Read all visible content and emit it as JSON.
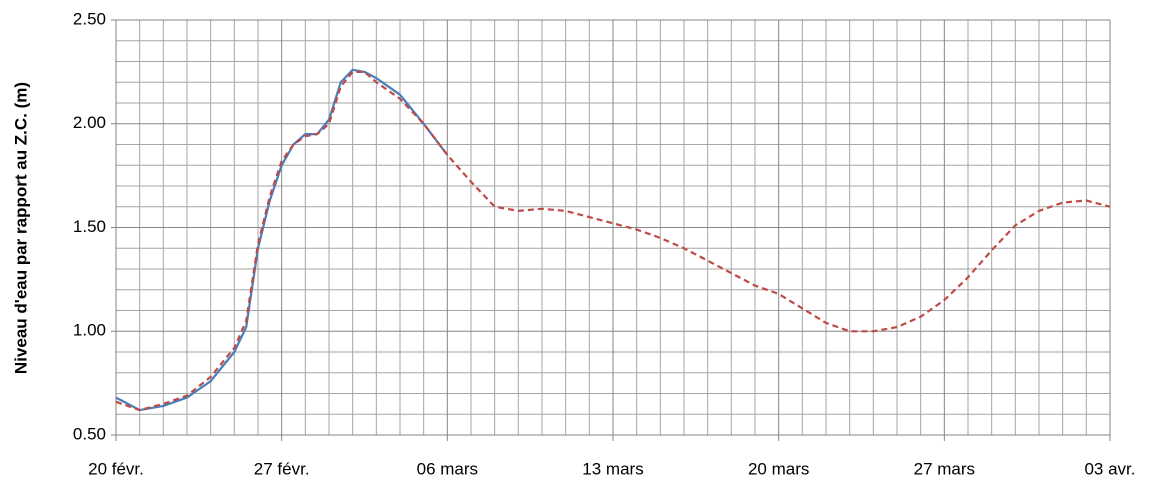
{
  "chart_data": {
    "type": "line",
    "ylabel": "Niveau d'eau par rapport au Z.C. (m)",
    "x": [
      0,
      1,
      2,
      3,
      4,
      5,
      5.5,
      6,
      6.5,
      7,
      7.5,
      8,
      8.5,
      9,
      9.5,
      10,
      10.5,
      11,
      12,
      13,
      14,
      15,
      16,
      17,
      18,
      19,
      20,
      21,
      22,
      23,
      24,
      25,
      26,
      27,
      28,
      29,
      30,
      31,
      32,
      33,
      34,
      35,
      36,
      37,
      38,
      39,
      40,
      41,
      42
    ],
    "series": [
      {
        "color": "#4a7ebb",
        "dash": false,
        "values": [
          0.68,
          0.62,
          0.64,
          0.68,
          0.76,
          0.9,
          1.02,
          1.4,
          1.63,
          1.8,
          1.9,
          1.95,
          1.95,
          2.02,
          2.2,
          2.26,
          2.25,
          2.22,
          2.14,
          2.0,
          1.85,
          null,
          null,
          null,
          null,
          null,
          null,
          null,
          null,
          null,
          null,
          null,
          null,
          null,
          null,
          null,
          null,
          null,
          null,
          null,
          null,
          null,
          null,
          null,
          null,
          null,
          null,
          null,
          null
        ]
      },
      {
        "color": "#be4b48",
        "dash": true,
        "values": [
          0.66,
          0.62,
          0.65,
          0.69,
          0.78,
          0.92,
          1.05,
          1.42,
          1.65,
          1.82,
          1.9,
          1.94,
          1.95,
          2.0,
          2.18,
          2.25,
          2.25,
          2.2,
          2.12,
          2.0,
          1.85,
          1.72,
          1.6,
          1.58,
          1.59,
          1.58,
          1.55,
          1.52,
          1.49,
          1.45,
          1.4,
          1.34,
          1.28,
          1.22,
          1.18,
          1.11,
          1.04,
          1.0,
          1.0,
          1.02,
          1.07,
          1.15,
          1.26,
          1.39,
          1.51,
          1.58,
          1.62,
          1.63,
          1.6
        ]
      }
    ],
    "xlim": [
      0,
      42
    ],
    "xticks": [
      {
        "value": 0,
        "label": "20 févr."
      },
      {
        "value": 7,
        "label": "27 févr."
      },
      {
        "value": 14,
        "label": "06 mars"
      },
      {
        "value": 21,
        "label": "13 mars"
      },
      {
        "value": 28,
        "label": "20 mars"
      },
      {
        "value": 35,
        "label": "27 mars"
      },
      {
        "value": 42,
        "label": "03 avr."
      }
    ],
    "ylim": [
      0.5,
      2.5
    ],
    "yticks": [
      {
        "value": 0.5,
        "label": "0.50"
      },
      {
        "value": 1,
        "label": "1.00"
      },
      {
        "value": 1.5,
        "label": "1.50"
      },
      {
        "value": 2,
        "label": "2.00"
      },
      {
        "value": 2.5,
        "label": "2.50"
      }
    ],
    "grid": true
  }
}
